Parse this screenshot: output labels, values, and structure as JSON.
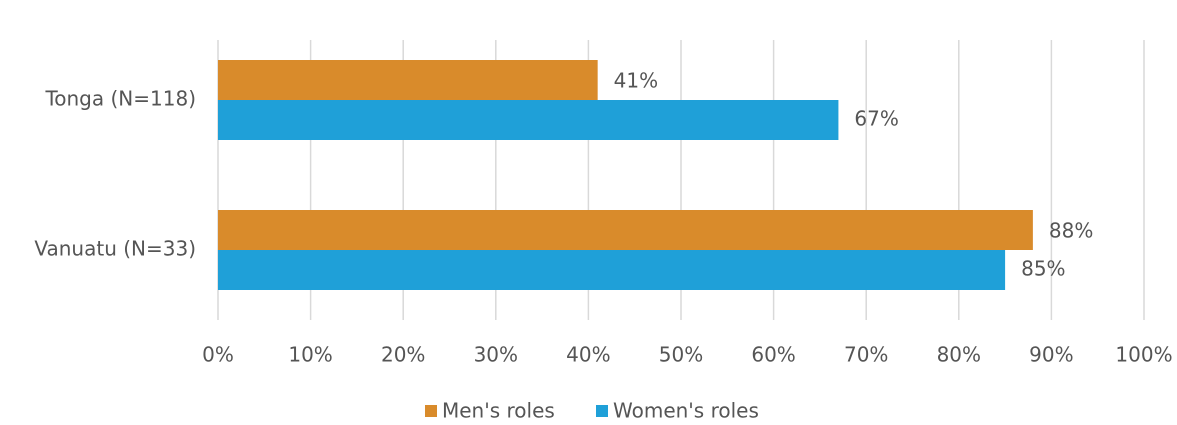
{
  "chart_data": {
    "type": "hbar",
    "categories": [
      "Tonga (N=118)",
      "Vanuatu (N=33)"
    ],
    "series": [
      {
        "name": "Men's roles",
        "color": "#d98b2b",
        "values": [
          41,
          88
        ],
        "value_labels": [
          "41%",
          "88%"
        ]
      },
      {
        "name": "Women's roles",
        "color": "#1fa0d8",
        "values": [
          67,
          85
        ],
        "value_labels": [
          "67%",
          "85%"
        ]
      }
    ],
    "xlim": [
      0,
      100
    ],
    "xticks": [
      {
        "value": 0,
        "label": "0%"
      },
      {
        "value": 10,
        "label": "10%"
      },
      {
        "value": 20,
        "label": "20%"
      },
      {
        "value": 30,
        "label": "30%"
      },
      {
        "value": 40,
        "label": "40%"
      },
      {
        "value": 50,
        "label": "50%"
      },
      {
        "value": 60,
        "label": "60%"
      },
      {
        "value": 70,
        "label": "70%"
      },
      {
        "value": 80,
        "label": "80%"
      },
      {
        "value": 90,
        "label": "90%"
      },
      {
        "value": 100,
        "label": "100%"
      }
    ],
    "grid": true,
    "legend": "bottom"
  }
}
